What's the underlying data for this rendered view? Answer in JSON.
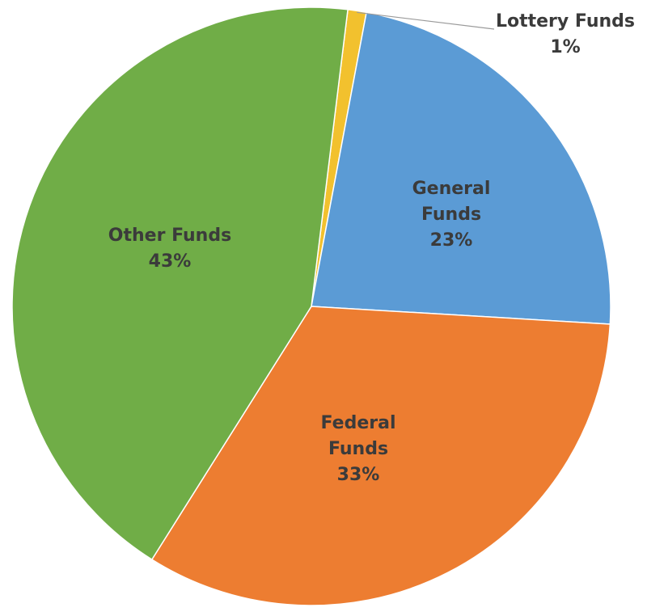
{
  "chart_data": {
    "type": "pie",
    "slices": [
      {
        "name": "Lottery Funds",
        "value": 1,
        "display": "1%",
        "label_lines": [
          "Lottery Funds",
          "1%"
        ],
        "color": "#f2c12e"
      },
      {
        "name": "General Funds",
        "value": 23,
        "display": "23%",
        "label_lines": [
          "General",
          "Funds",
          "23%"
        ],
        "color": "#5b9bd5"
      },
      {
        "name": "Federal Funds",
        "value": 33,
        "display": "33%",
        "label_lines": [
          "Federal",
          "Funds",
          "33%"
        ],
        "color": "#ed7d31"
      },
      {
        "name": "Other Funds",
        "value": 43,
        "display": "43%",
        "label_lines": [
          "Other Funds",
          "43%"
        ],
        "color": "#70ad47"
      }
    ],
    "start_angle_deg": -83,
    "direction": "clockwise",
    "legend": "none",
    "title": ""
  }
}
